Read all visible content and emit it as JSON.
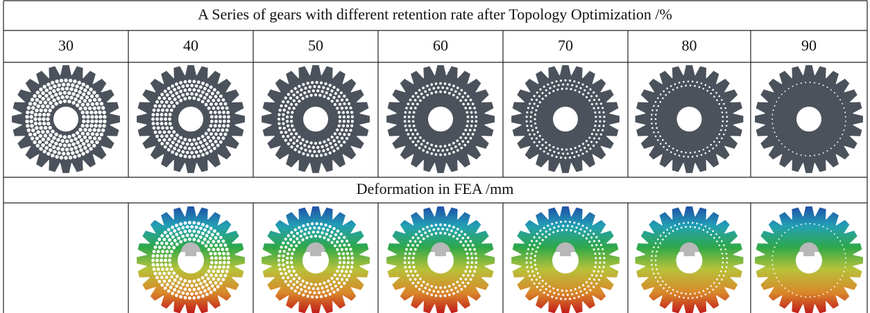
{
  "table": {
    "title": "A Series of gears with different retention rate after Topology Optimization /%",
    "retention_rates": [
      "30",
      "40",
      "50",
      "60",
      "70",
      "80",
      "90"
    ],
    "deformation_header": "Deformation in FEA /mm"
  }
}
